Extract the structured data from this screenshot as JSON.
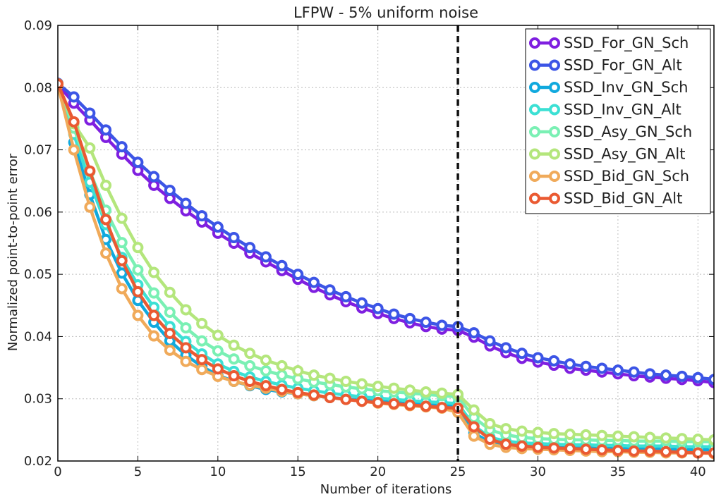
{
  "chart_data": {
    "type": "line",
    "title": "LFPW - 5% uniform noise",
    "xlabel": "Number of iterations",
    "ylabel": "Normalized point-to-point error",
    "xlim": [
      0,
      41
    ],
    "ylim": [
      0.02,
      0.09
    ],
    "xticks": [
      "0",
      "5",
      "10",
      "15",
      "20",
      "25",
      "30",
      "35",
      "40"
    ],
    "yticks": [
      "0.02",
      "0.03",
      "0.04",
      "0.05",
      "0.06",
      "0.07",
      "0.08",
      "0.09"
    ],
    "grid": true,
    "legend_position": "top-right",
    "vline": {
      "x": 25,
      "style": "dashed",
      "color": "#111111"
    },
    "x": [
      0,
      1,
      2,
      3,
      4,
      5,
      6,
      7,
      8,
      9,
      10,
      11,
      12,
      13,
      14,
      15,
      16,
      17,
      18,
      19,
      20,
      21,
      22,
      23,
      24,
      25,
      26,
      27,
      28,
      29,
      30,
      31,
      32,
      33,
      34,
      35,
      36,
      37,
      38,
      39,
      40,
      41
    ],
    "series": [
      {
        "name": "SSD_For_GN_Sch",
        "color": "#7f1fe0",
        "values": [
          0.0805,
          0.0775,
          0.0748,
          0.072,
          0.0693,
          0.0667,
          0.0643,
          0.0622,
          0.0602,
          0.0584,
          0.0566,
          0.055,
          0.0534,
          0.052,
          0.0506,
          0.0492,
          0.0479,
          0.0467,
          0.0456,
          0.0446,
          0.0437,
          0.0429,
          0.0422,
          0.0416,
          0.0412,
          0.041,
          0.0399,
          0.0385,
          0.0374,
          0.0365,
          0.0359,
          0.0354,
          0.0349,
          0.0346,
          0.0343,
          0.034,
          0.0337,
          0.0335,
          0.0333,
          0.0331,
          0.0329,
          0.0326
        ]
      },
      {
        "name": "SSD_For_GN_Alt",
        "color": "#3c55e6",
        "values": [
          0.0807,
          0.0785,
          0.0759,
          0.0732,
          0.0705,
          0.068,
          0.0657,
          0.0635,
          0.0614,
          0.0594,
          0.0576,
          0.0559,
          0.0543,
          0.0528,
          0.0514,
          0.05,
          0.0487,
          0.0475,
          0.0464,
          0.0454,
          0.0445,
          0.0436,
          0.0429,
          0.0423,
          0.0418,
          0.0416,
          0.0406,
          0.0393,
          0.0382,
          0.0373,
          0.0366,
          0.0361,
          0.0356,
          0.0352,
          0.0349,
          0.0346,
          0.0343,
          0.034,
          0.0338,
          0.0336,
          0.0334,
          0.0331
        ]
      },
      {
        "name": "SSD_Inv_GN_Sch",
        "color": "#10a9de",
        "values": [
          0.0805,
          0.0712,
          0.0628,
          0.0556,
          0.0502,
          0.0458,
          0.0423,
          0.0393,
          0.037,
          0.0352,
          0.0338,
          0.0328,
          0.0321,
          0.0315,
          0.0311,
          0.0308,
          0.0305,
          0.0302,
          0.03,
          0.0298,
          0.0296,
          0.0294,
          0.0292,
          0.0291,
          0.0289,
          0.0288,
          0.0245,
          0.023,
          0.0226,
          0.0224,
          0.0223,
          0.0222,
          0.0221,
          0.0221,
          0.022,
          0.022,
          0.0219,
          0.0219,
          0.0219,
          0.0218,
          0.0218,
          0.0218
        ]
      },
      {
        "name": "SSD_Inv_GN_Alt",
        "color": "#3ce0d4",
        "values": [
          0.0806,
          0.0725,
          0.0648,
          0.058,
          0.0527,
          0.0483,
          0.0447,
          0.0416,
          0.0392,
          0.0372,
          0.0356,
          0.0344,
          0.0335,
          0.0328,
          0.0322,
          0.0317,
          0.0313,
          0.0309,
          0.0306,
          0.0303,
          0.0301,
          0.0299,
          0.0297,
          0.0295,
          0.0294,
          0.0292,
          0.0257,
          0.0238,
          0.0232,
          0.0229,
          0.0228,
          0.0227,
          0.0226,
          0.0226,
          0.0225,
          0.0225,
          0.0224,
          0.0224,
          0.0224,
          0.0223,
          0.0223,
          0.0223
        ]
      },
      {
        "name": "SSD_Asy_GN_Sch",
        "color": "#7af0b4",
        "values": [
          0.0806,
          0.0735,
          0.0665,
          0.0603,
          0.0551,
          0.0507,
          0.047,
          0.0439,
          0.0414,
          0.0393,
          0.0377,
          0.0364,
          0.0353,
          0.0345,
          0.0338,
          0.0332,
          0.0327,
          0.0323,
          0.0319,
          0.0316,
          0.0313,
          0.0311,
          0.0309,
          0.0307,
          0.0305,
          0.0303,
          0.027,
          0.025,
          0.0242,
          0.0238,
          0.0236,
          0.0235,
          0.0234,
          0.0234,
          0.0233,
          0.0233,
          0.0232,
          0.0232,
          0.0232,
          0.0231,
          0.0231,
          0.0231
        ]
      },
      {
        "name": "SSD_Asy_GN_Alt",
        "color": "#b4e67c",
        "values": [
          0.0806,
          0.0742,
          0.0703,
          0.0643,
          0.059,
          0.0543,
          0.0503,
          0.0471,
          0.0443,
          0.0421,
          0.0402,
          0.0386,
          0.0373,
          0.0362,
          0.0353,
          0.0345,
          0.0338,
          0.0333,
          0.0328,
          0.0324,
          0.032,
          0.0317,
          0.0314,
          0.0311,
          0.0309,
          0.0307,
          0.0282,
          0.026,
          0.0252,
          0.0248,
          0.0246,
          0.0244,
          0.0243,
          0.0242,
          0.0241,
          0.024,
          0.0239,
          0.0238,
          0.0237,
          0.0236,
          0.0235,
          0.0234
        ]
      },
      {
        "name": "SSD_Bid_GN_Sch",
        "color": "#f0aa5a",
        "values": [
          0.0804,
          0.07,
          0.0608,
          0.0534,
          0.0477,
          0.0434,
          0.0401,
          0.0378,
          0.036,
          0.0347,
          0.0336,
          0.0328,
          0.0322,
          0.0317,
          0.0312,
          0.0308,
          0.0305,
          0.0302,
          0.0299,
          0.0296,
          0.0293,
          0.0291,
          0.0289,
          0.0287,
          0.0285,
          0.0278,
          0.024,
          0.0227,
          0.0222,
          0.022,
          0.0219,
          0.0218,
          0.0217,
          0.0216,
          0.0215,
          0.0215,
          0.0214,
          0.0214,
          0.0213,
          0.0213,
          0.0213,
          0.0212
        ]
      },
      {
        "name": "SSD_Bid_GN_Alt",
        "color": "#ea5a32",
        "values": [
          0.0806,
          0.0745,
          0.0666,
          0.0588,
          0.0522,
          0.0472,
          0.0434,
          0.0405,
          0.0382,
          0.0363,
          0.0348,
          0.0337,
          0.0328,
          0.0321,
          0.0315,
          0.031,
          0.0306,
          0.0302,
          0.0299,
          0.0296,
          0.0294,
          0.0292,
          0.029,
          0.0288,
          0.0286,
          0.0285,
          0.0255,
          0.0235,
          0.0227,
          0.0224,
          0.0222,
          0.0221,
          0.022,
          0.0219,
          0.0218,
          0.0217,
          0.0216,
          0.0216,
          0.0215,
          0.0214,
          0.0213,
          0.0213
        ]
      }
    ]
  }
}
